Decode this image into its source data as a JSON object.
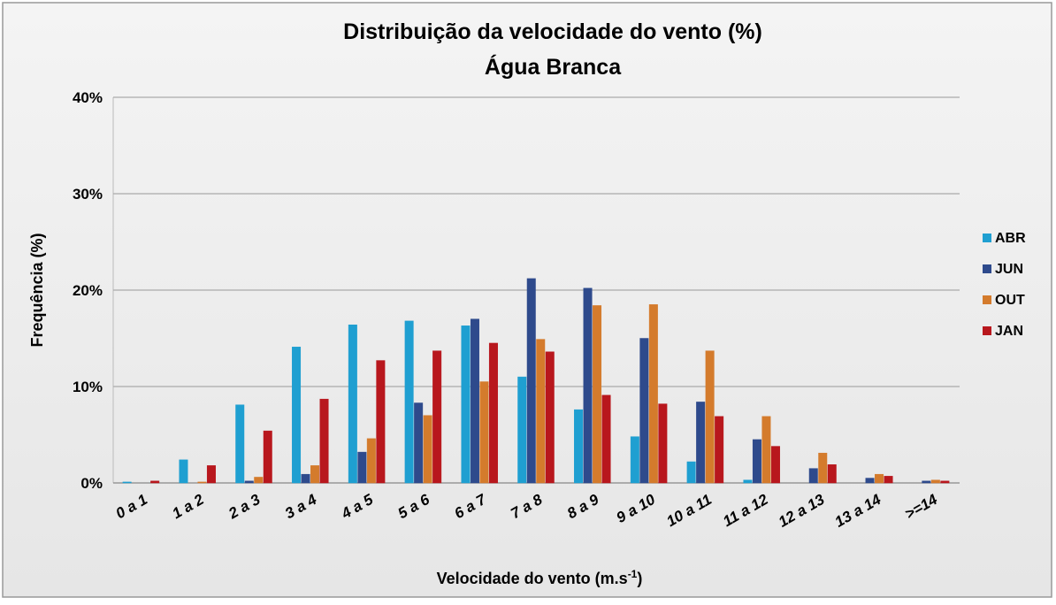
{
  "chart_data": {
    "type": "bar",
    "title": "Distribuição da velocidade do vento (%)",
    "subtitle": "Água Branca",
    "ylabel": "Frequência (%)",
    "xlabel": {
      "text": "Velocidade do vento (m.s",
      "superscript": "-1",
      "suffix": ")"
    },
    "categories": [
      "0 a 1",
      "1 a 2",
      "2 a 3",
      "3 a 4",
      "4 a 5",
      "5 a 6",
      "6 a 7",
      "7 a 8",
      "8 a 9",
      "9 a 10",
      "10 a 11",
      "11 a 12",
      "12 a 13",
      "13 a 14",
      ">=14"
    ],
    "series": [
      {
        "name": "ABR",
        "color": "#1f9fd1",
        "values": [
          0.1,
          2.4,
          8.1,
          14.1,
          16.4,
          16.8,
          16.3,
          11.0,
          7.6,
          4.8,
          2.2,
          0.3,
          0,
          0,
          0
        ]
      },
      {
        "name": "JUN",
        "color": "#2e4a8c",
        "values": [
          0,
          0,
          0.2,
          0.9,
          3.2,
          8.3,
          17.0,
          21.2,
          20.2,
          15.0,
          8.4,
          4.5,
          1.5,
          0.5,
          0.2
        ]
      },
      {
        "name": "OUT",
        "color": "#d47b2c",
        "values": [
          0,
          0.1,
          0.6,
          1.8,
          4.6,
          7.0,
          10.5,
          14.9,
          18.4,
          18.5,
          13.7,
          6.9,
          3.1,
          0.9,
          0.3
        ]
      },
      {
        "name": "JAN",
        "color": "#b8171d",
        "values": [
          0.2,
          1.8,
          5.4,
          8.7,
          12.7,
          13.7,
          14.5,
          13.6,
          9.1,
          8.2,
          6.9,
          3.8,
          1.9,
          0.7,
          0.2
        ]
      }
    ],
    "ylim": [
      0,
      40
    ],
    "yticks": [
      {
        "value": 0,
        "label": "0%"
      },
      {
        "value": 10,
        "label": "10%"
      },
      {
        "value": 20,
        "label": "20%"
      },
      {
        "value": 30,
        "label": "30%"
      },
      {
        "value": 40,
        "label": "40%"
      }
    ],
    "grid": true,
    "legend": "right"
  }
}
